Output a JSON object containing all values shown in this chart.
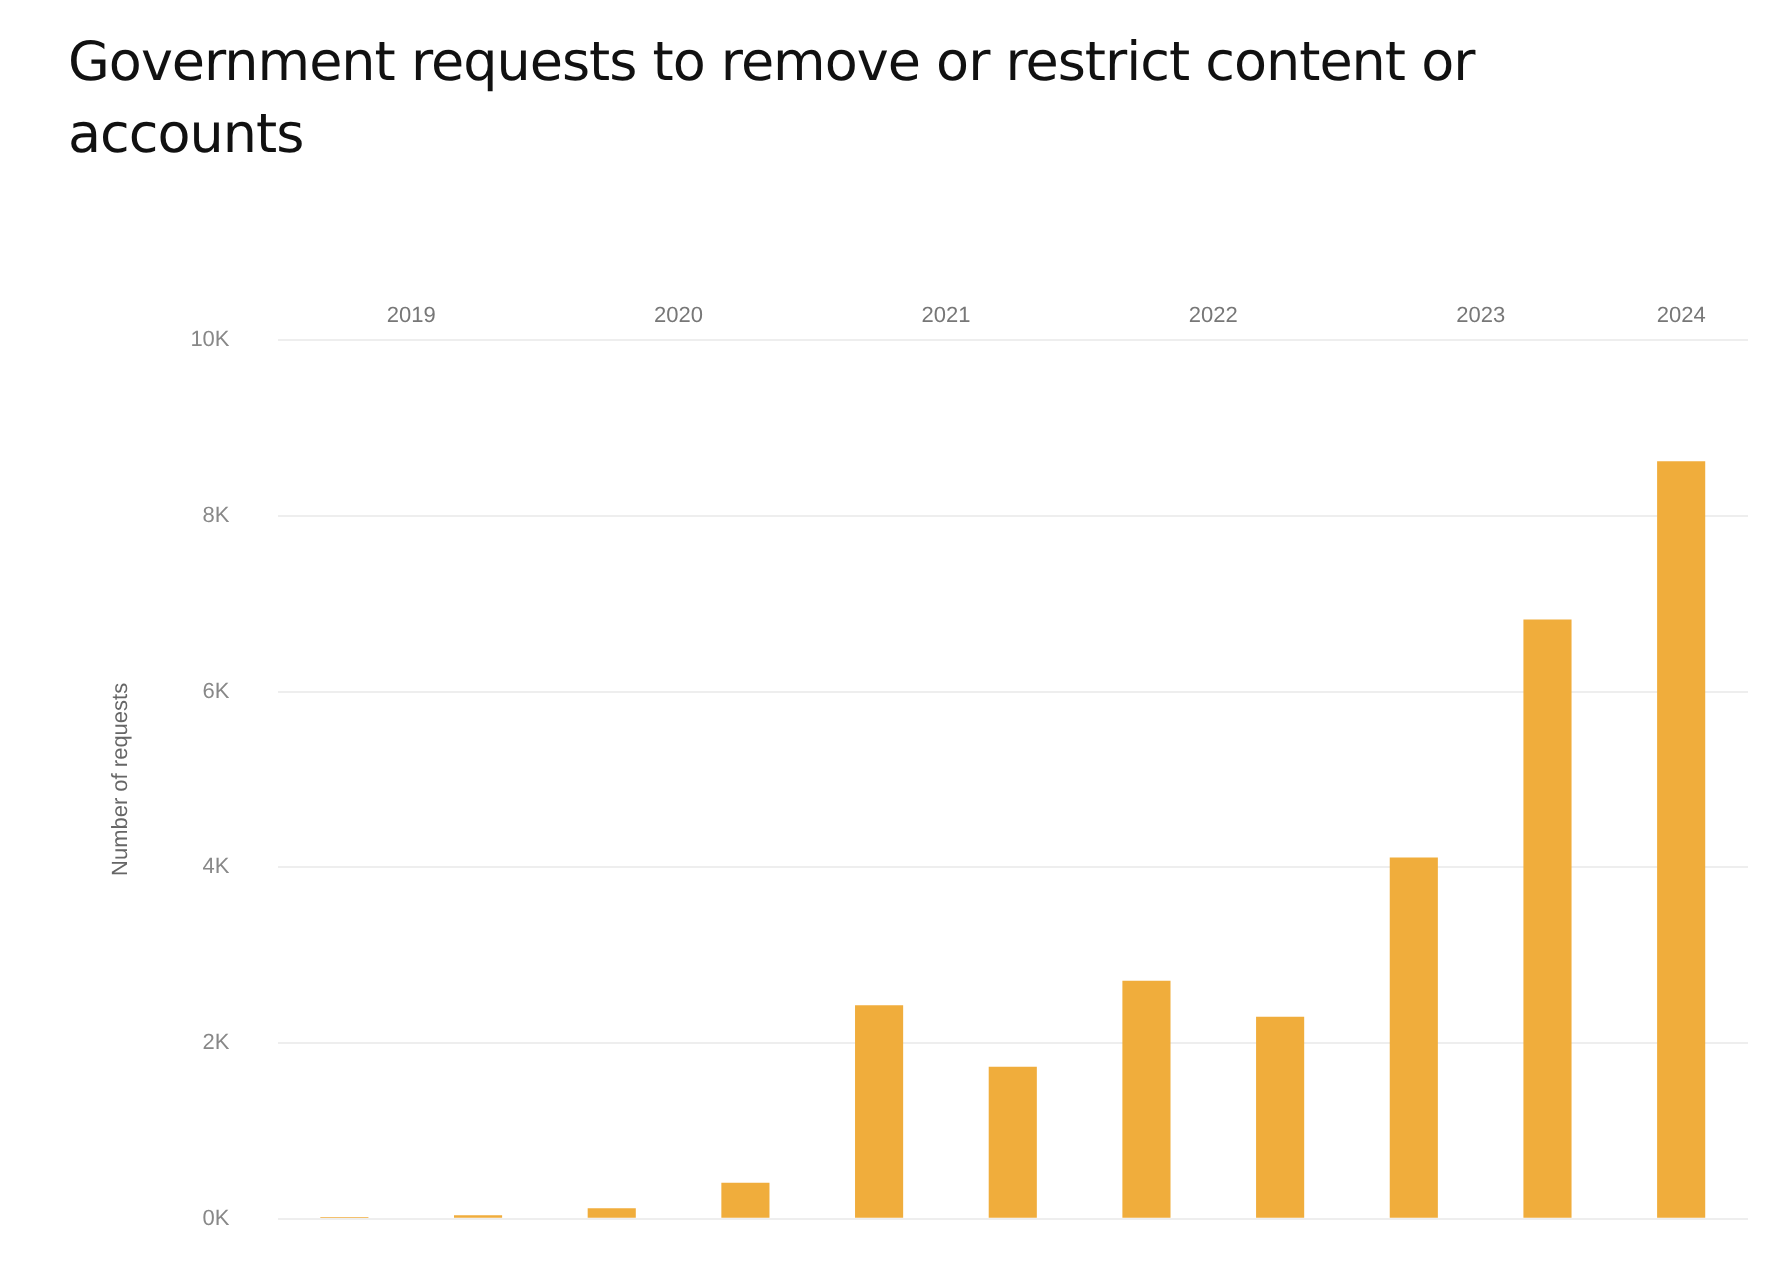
{
  "chart_data": {
    "type": "bar",
    "title": "Government requests to remove or restrict content or accounts",
    "ylabel": "Number of requests",
    "categories": [
      "2019",
      null,
      "2020",
      null,
      "2021",
      null,
      "2022",
      null,
      "2023",
      null,
      "2024"
    ],
    "values": [
      0.02,
      0.04,
      0.12,
      0.41,
      2.43,
      1.73,
      2.71,
      2.3,
      4.11,
      6.82,
      8.62
    ],
    "color": "#f0ad3c",
    "ylim": [
      0,
      10
    ],
    "yticks": [
      {
        "value": 0,
        "label": "0K"
      },
      {
        "value": 2,
        "label": "2K"
      },
      {
        "value": 4,
        "label": "4K"
      },
      {
        "value": 6,
        "label": "6K"
      },
      {
        "value": 8,
        "label": "8K"
      },
      {
        "value": 10,
        "label": "10K"
      }
    ],
    "grid": "y",
    "legend": false
  }
}
